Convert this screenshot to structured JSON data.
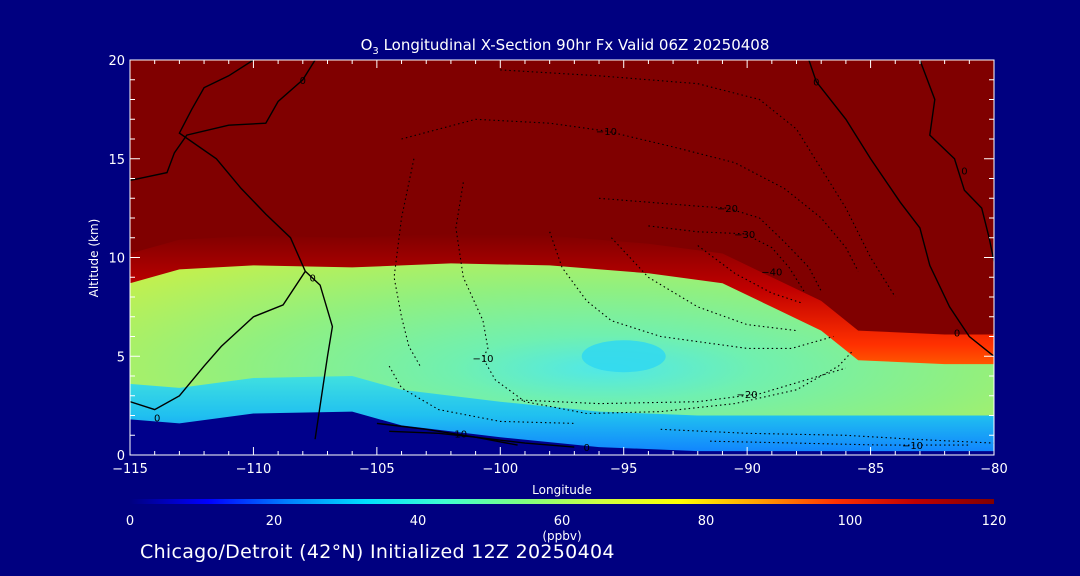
{
  "chart_data": {
    "type": "heatmap",
    "title": "O",
    "title_sub": "3",
    "title_rest": " Longitudinal X-Section 90hr  Fx Valid 06Z 20250408",
    "xlabel": "Longitude",
    "ylabel": "Altitude (km)",
    "xlim": [
      -115,
      -80
    ],
    "ylim": [
      0,
      20
    ],
    "x_ticks": [
      -115,
      -110,
      -105,
      -100,
      -95,
      -90,
      -85,
      -80
    ],
    "x_tick_labels": [
      "−115",
      "−110",
      "−105",
      "−100",
      "−95",
      "−90",
      "−85",
      "−80"
    ],
    "y_ticks": [
      0,
      5,
      10,
      15,
      20
    ],
    "y_tick_labels": [
      "0",
      "5",
      "10",
      "15",
      "20"
    ],
    "colorbar": {
      "label": "(ppbv)",
      "range": [
        0,
        120
      ],
      "ticks": [
        0,
        20,
        40,
        60,
        80,
        100,
        120
      ],
      "tick_labels": [
        "0",
        "20",
        "40",
        "60",
        "80",
        "100",
        "120"
      ],
      "colors": [
        "#000080",
        "#0000ff",
        "#0080ff",
        "#00e0ff",
        "#40ffd0",
        "#80ff80",
        "#d0ff40",
        "#ffff00",
        "#ffa000",
        "#ff3000",
        "#c00000",
        "#800000"
      ]
    },
    "tropopause_km": [
      {
        "lon": -115,
        "alt": 10.2
      },
      {
        "lon": -113,
        "alt": 10.9
      },
      {
        "lon": -110,
        "alt": 11.1
      },
      {
        "lon": -106,
        "alt": 11.0
      },
      {
        "lon": -102,
        "alt": 11.2
      },
      {
        "lon": -98,
        "alt": 11.1
      },
      {
        "lon": -94,
        "alt": 10.7
      },
      {
        "lon": -91,
        "alt": 10.2
      },
      {
        "lon": -89,
        "alt": 9.0
      },
      {
        "lon": -87,
        "alt": 7.8
      },
      {
        "lon": -85.5,
        "alt": 6.3
      },
      {
        "lon": -82,
        "alt": 6.1
      },
      {
        "lon": -80,
        "alt": 6.1
      }
    ],
    "terrain_km": [
      {
        "lon": -115,
        "alt": 1.8
      },
      {
        "lon": -113,
        "alt": 1.6
      },
      {
        "lon": -110,
        "alt": 2.1
      },
      {
        "lon": -106,
        "alt": 2.2
      },
      {
        "lon": -104,
        "alt": 1.5
      },
      {
        "lon": -100,
        "alt": 0.9
      },
      {
        "lon": -96,
        "alt": 0.4
      },
      {
        "lon": -92,
        "alt": 0.2
      },
      {
        "lon": -88,
        "alt": 0.2
      },
      {
        "lon": -84,
        "alt": 0.2
      },
      {
        "lon": -80,
        "alt": 0.2
      }
    ],
    "contour_labels": [
      {
        "text": "0",
        "lon": -108.0,
        "alt": 19.0
      },
      {
        "text": "0",
        "lon": -87.2,
        "alt": 18.9
      },
      {
        "text": "−10",
        "lon": -95.7,
        "alt": 16.4
      },
      {
        "text": "0",
        "lon": -81.2,
        "alt": 14.4
      },
      {
        "text": "−20",
        "lon": -90.8,
        "alt": 12.5
      },
      {
        "text": "−30",
        "lon": -90.1,
        "alt": 11.2
      },
      {
        "text": "−40",
        "lon": -89.0,
        "alt": 9.3
      },
      {
        "text": "0",
        "lon": -107.6,
        "alt": 9.0
      },
      {
        "text": "0",
        "lon": -81.5,
        "alt": 6.2
      },
      {
        "text": "−10",
        "lon": -100.7,
        "alt": 4.9
      },
      {
        "text": "−20",
        "lon": -90.0,
        "alt": 3.1
      },
      {
        "text": "0",
        "lon": -113.9,
        "alt": 1.9
      },
      {
        "text": "10",
        "lon": -101.6,
        "alt": 1.1
      },
      {
        "text": "0",
        "lon": -96.5,
        "alt": 0.4
      },
      {
        "text": "−10",
        "lon": -83.3,
        "alt": 0.5
      }
    ]
  },
  "footer_text": "Chicago/Detroit (42°N) Initialized 12Z 20250404"
}
